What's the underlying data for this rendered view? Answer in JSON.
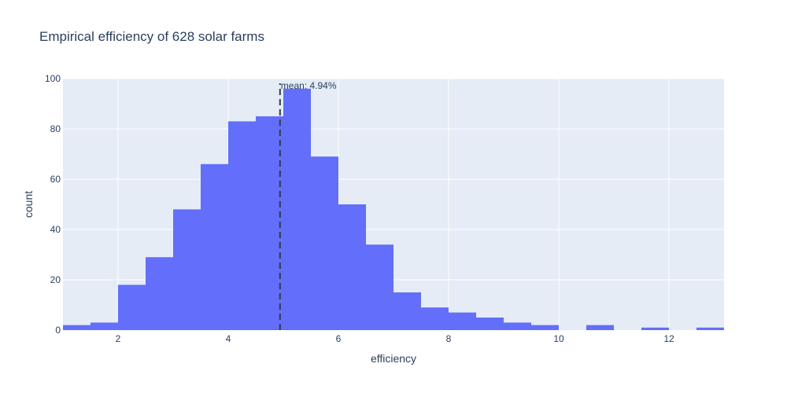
{
  "chart_data": {
    "type": "bar",
    "title": "Empirical efficiency of 628 solar farms",
    "xlabel": "efficiency",
    "ylabel": "count",
    "xlim": [
      1.0,
      13.0
    ],
    "ylim": [
      0,
      100
    ],
    "x_ticks": [
      2,
      4,
      6,
      8,
      10,
      12
    ],
    "y_ticks": [
      0,
      20,
      40,
      60,
      80,
      100
    ],
    "bin_width": 0.5,
    "bins": [
      {
        "x0": 1.0,
        "x1": 1.5,
        "count": 2
      },
      {
        "x0": 1.5,
        "x1": 2.0,
        "count": 3
      },
      {
        "x0": 2.0,
        "x1": 2.5,
        "count": 18
      },
      {
        "x0": 2.5,
        "x1": 3.0,
        "count": 29
      },
      {
        "x0": 3.0,
        "x1": 3.5,
        "count": 48
      },
      {
        "x0": 3.5,
        "x1": 4.0,
        "count": 66
      },
      {
        "x0": 4.0,
        "x1": 4.5,
        "count": 83
      },
      {
        "x0": 4.5,
        "x1": 5.0,
        "count": 85
      },
      {
        "x0": 5.0,
        "x1": 5.5,
        "count": 96
      },
      {
        "x0": 5.5,
        "x1": 6.0,
        "count": 69
      },
      {
        "x0": 6.0,
        "x1": 6.5,
        "count": 50
      },
      {
        "x0": 6.5,
        "x1": 7.0,
        "count": 34
      },
      {
        "x0": 7.0,
        "x1": 7.5,
        "count": 15
      },
      {
        "x0": 7.5,
        "x1": 8.0,
        "count": 9
      },
      {
        "x0": 8.0,
        "x1": 8.5,
        "count": 7
      },
      {
        "x0": 8.5,
        "x1": 9.0,
        "count": 5
      },
      {
        "x0": 9.0,
        "x1": 9.5,
        "count": 3
      },
      {
        "x0": 9.5,
        "x1": 10.0,
        "count": 2
      },
      {
        "x0": 10.0,
        "x1": 10.5,
        "count": 0
      },
      {
        "x0": 10.5,
        "x1": 11.0,
        "count": 2
      },
      {
        "x0": 11.0,
        "x1": 11.5,
        "count": 0
      },
      {
        "x0": 11.5,
        "x1": 12.0,
        "count": 1
      },
      {
        "x0": 12.0,
        "x1": 12.5,
        "count": 0
      },
      {
        "x0": 12.5,
        "x1": 13.0,
        "count": 1
      }
    ],
    "mean_line": {
      "x": 4.94,
      "label": "mean: 4.94%"
    },
    "grid": true,
    "colors": {
      "bar": "#636efa",
      "plot_bg": "#e5ecf6",
      "grid": "#ffffff",
      "text": "#2a3f5f",
      "mean_line": "#2f3a4f"
    }
  }
}
